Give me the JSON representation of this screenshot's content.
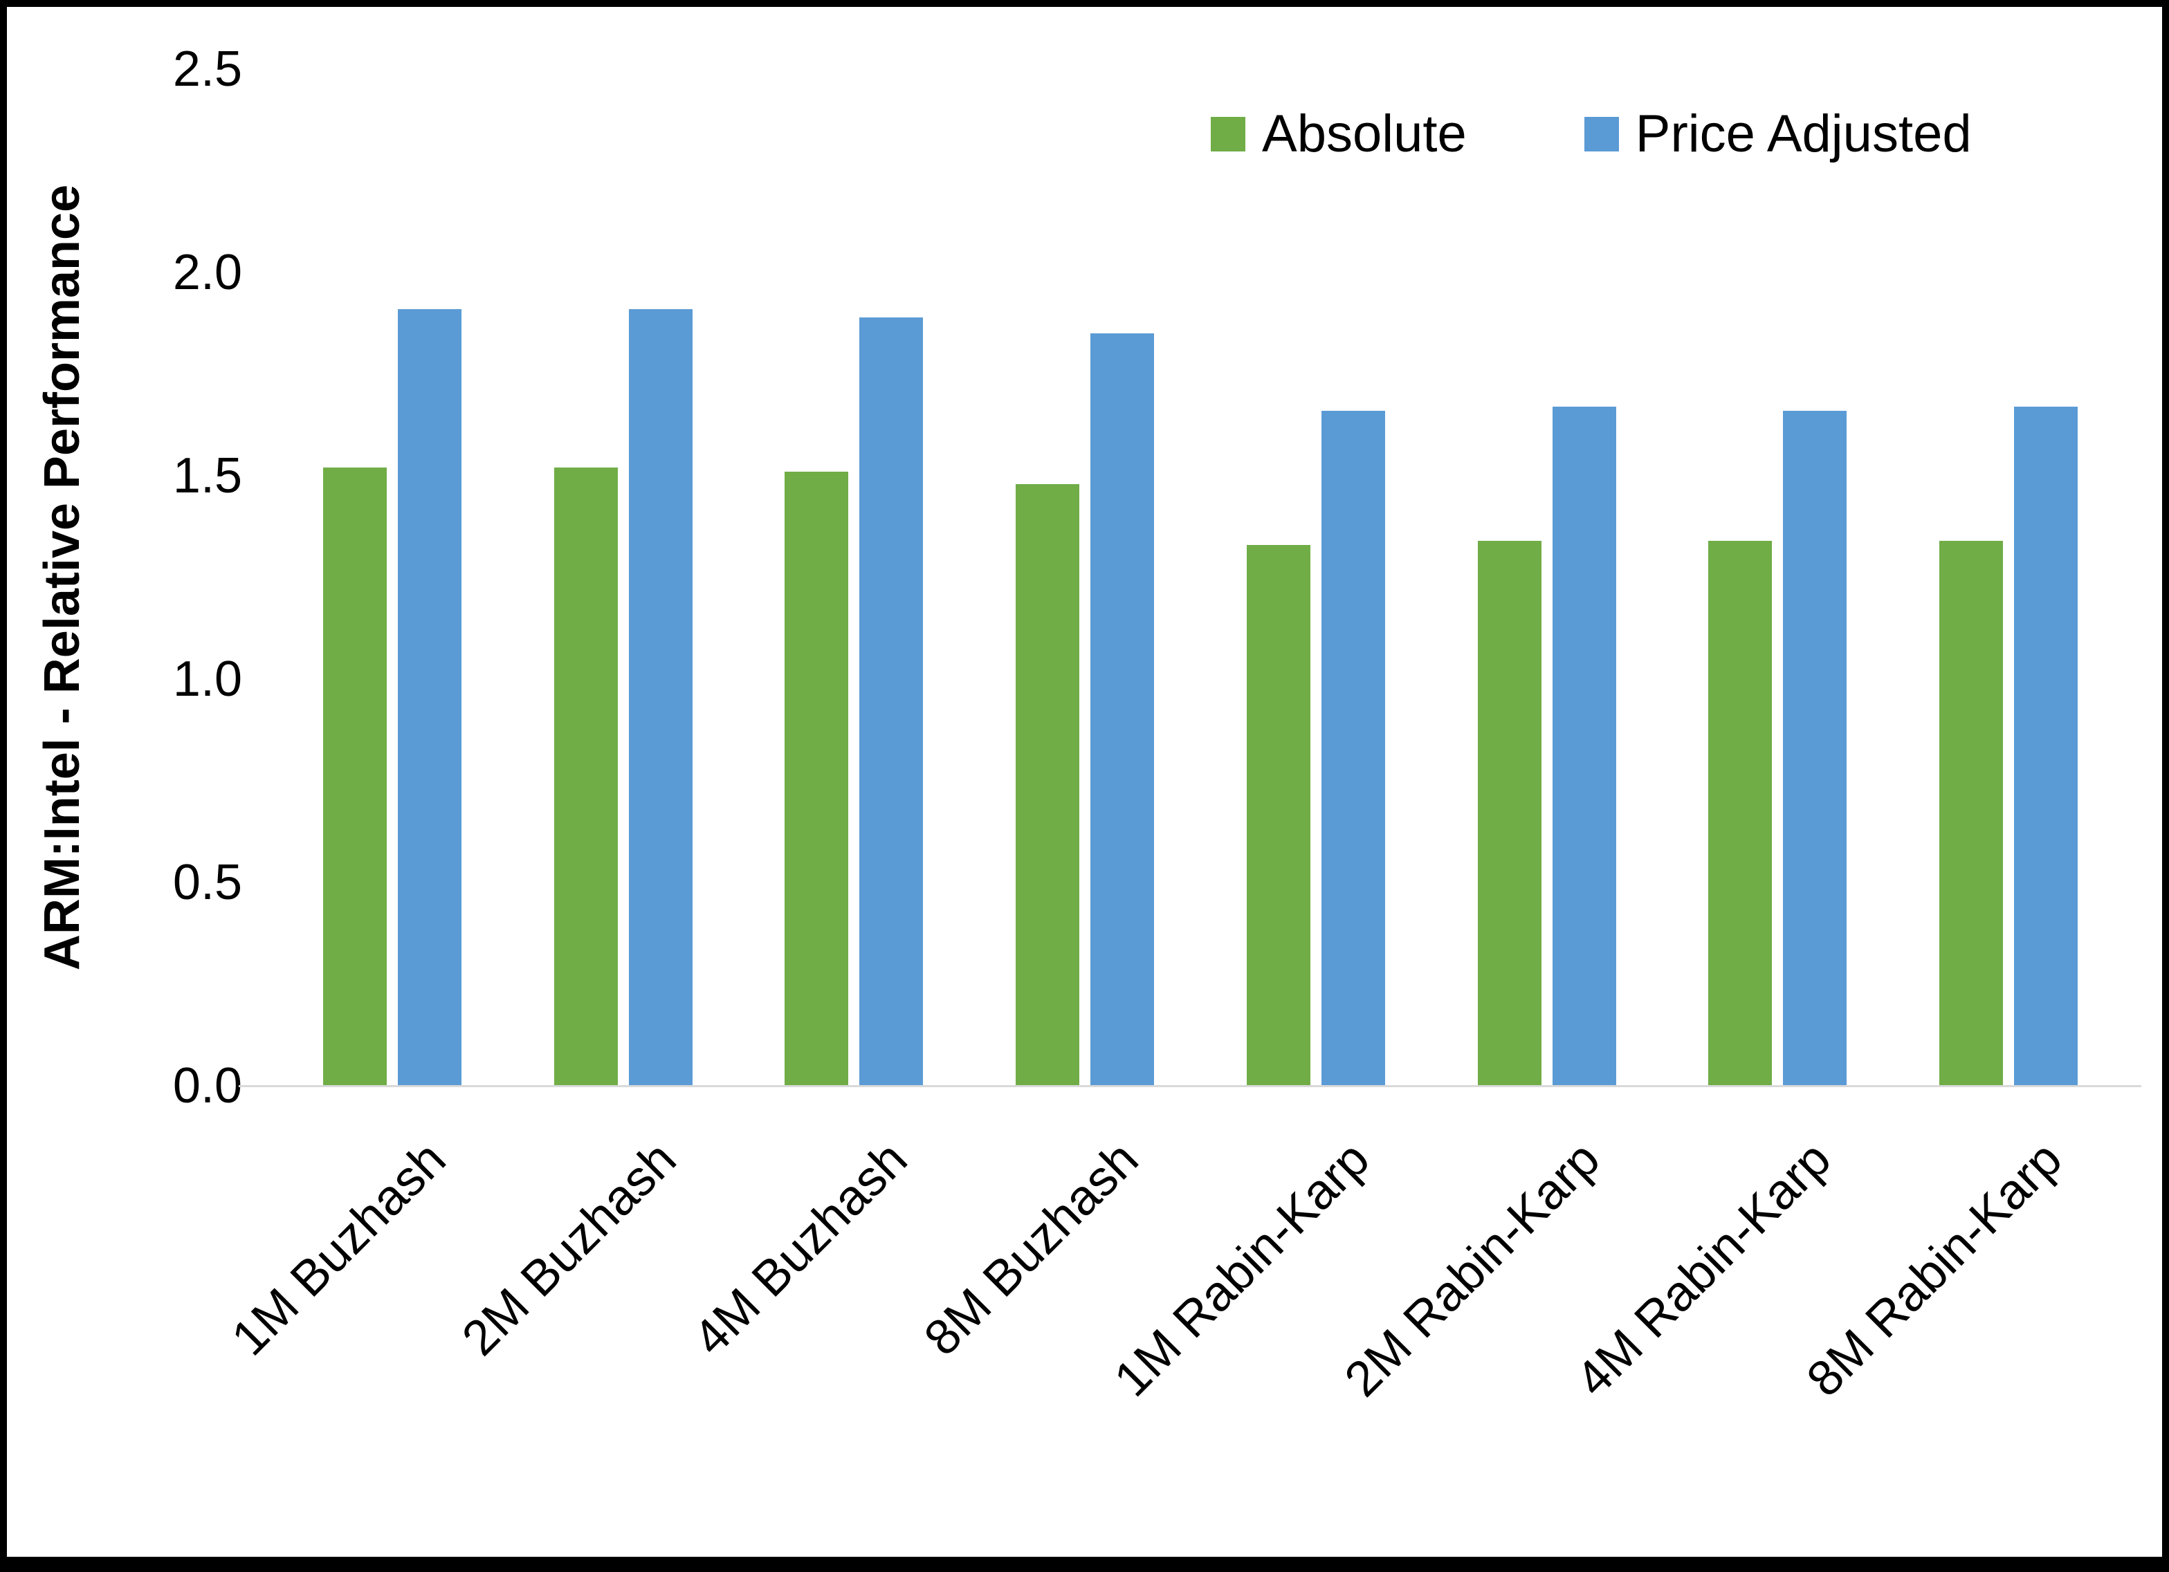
{
  "chart_data": {
    "type": "bar",
    "title": "",
    "xlabel": "",
    "ylabel": "ARM:Intel - Relative Performance",
    "ylim": [
      0,
      2.5
    ],
    "yticks": [
      "0.0",
      "0.5",
      "1.0",
      "1.5",
      "2.0",
      "2.5"
    ],
    "grid": false,
    "legend_position": "top-right",
    "categories": [
      "1M Buzhash",
      "2M Buzhash",
      "4M Buzhash",
      "8M Buzhash",
      "1M Rabin-Karp",
      "2M Rabin-Karp",
      "4M Rabin-Karp",
      "8M Rabin-Karp"
    ],
    "series": [
      {
        "name": "Absolute",
        "color": "#70AD47",
        "values": [
          1.52,
          1.52,
          1.51,
          1.48,
          1.33,
          1.34,
          1.34,
          1.34
        ]
      },
      {
        "name": "Price Adjusted",
        "color": "#5B9BD5",
        "values": [
          1.91,
          1.91,
          1.89,
          1.85,
          1.66,
          1.67,
          1.66,
          1.67
        ]
      }
    ]
  }
}
